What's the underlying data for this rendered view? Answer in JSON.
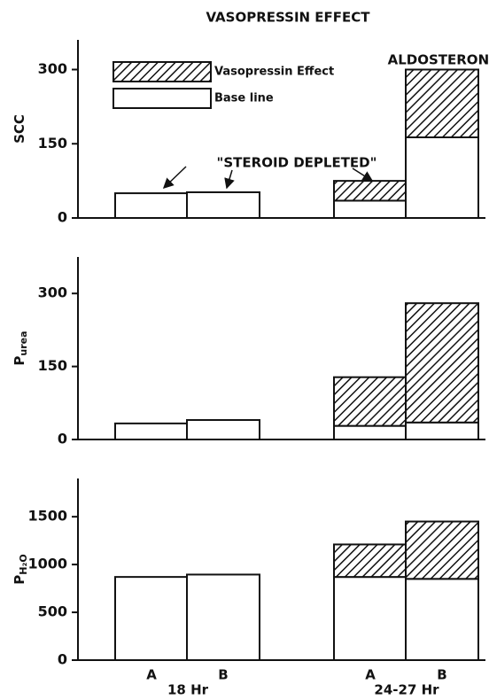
{
  "chart_data": [
    {
      "type": "bar",
      "stacked": true,
      "title": "VASOPRESSIN EFFECT",
      "ylabel": "SCC",
      "categories": [
        "A",
        "B",
        "A",
        "B"
      ],
      "series": [
        {
          "name": "Base line",
          "color": "#ffffff",
          "values": [
            50,
            52,
            35,
            163
          ]
        },
        {
          "name": "Vasopressin Effect",
          "color": "#ffffff",
          "hatch": true,
          "values": [
            null,
            null,
            40,
            137
          ]
        }
      ],
      "ylim": [
        0,
        360
      ],
      "yticks": [
        0,
        150,
        300
      ],
      "legend": "upper left",
      "annotations": [
        "ALDOSTERONE",
        "\"STEROID DEPLETED\""
      ]
    },
    {
      "type": "bar",
      "stacked": true,
      "ylabel": "P",
      "ylabel_sub": "urea",
      "categories": [
        "A",
        "B",
        "A",
        "B"
      ],
      "series": [
        {
          "color": "#ffffff",
          "values": [
            33,
            40,
            28,
            35
          ]
        },
        {
          "color": "#ffffff",
          "hatch": true,
          "values": [
            null,
            null,
            100,
            245
          ]
        }
      ],
      "ylim": [
        0,
        375
      ],
      "yticks": [
        0,
        150,
        300
      ]
    },
    {
      "type": "bar",
      "stacked": true,
      "ylabel": "P",
      "ylabel_sub": "H₂O",
      "categories": [
        "A",
        "B",
        "A",
        "B"
      ],
      "groups": [
        "18 Hr",
        "24-27 Hr"
      ],
      "series": [
        {
          "color": "#ffffff",
          "values": [
            870,
            895,
            870,
            850
          ]
        },
        {
          "color": "#ffffff",
          "hatch": true,
          "values": [
            null,
            null,
            340,
            600
          ]
        }
      ],
      "ylim": [
        0,
        1900
      ],
      "yticks": [
        0,
        500,
        1000,
        1500
      ]
    }
  ]
}
